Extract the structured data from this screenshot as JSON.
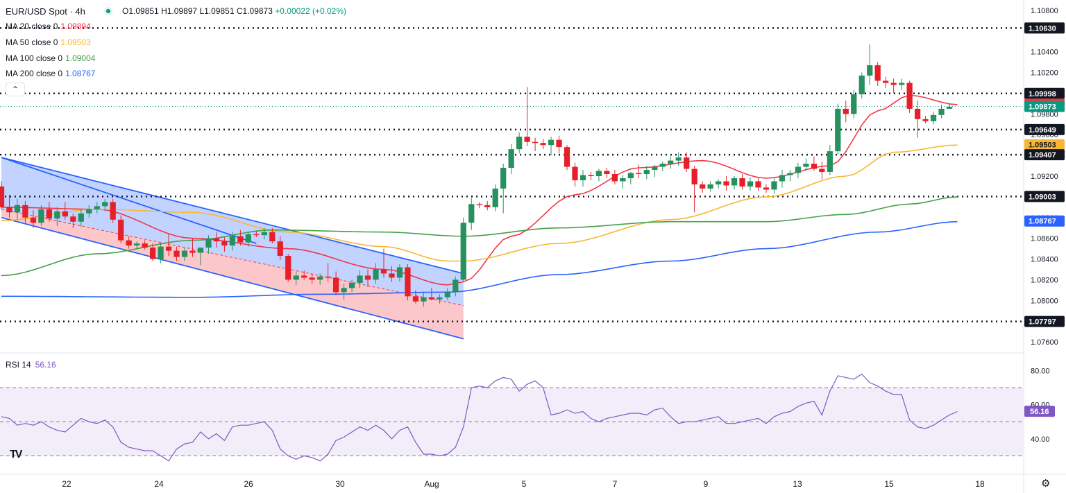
{
  "header": {
    "title": "EUR/USD Spot · 4h",
    "ohlc": {
      "open": "O1.09851",
      "high": "H1.09897",
      "low": "L1.09851",
      "close": "C1.09873",
      "change": "+0.00022 (+0.02%)"
    }
  },
  "indicators": {
    "ma": [
      {
        "label": "MA 20 close 0",
        "value": "1.09894",
        "color": "#f23645"
      },
      {
        "label": "MA 50 close 0",
        "value": "1.09503",
        "color": "#f7b733"
      },
      {
        "label": "MA 100 close 0",
        "value": "1.09004",
        "color": "#43a047"
      },
      {
        "label": "MA 200 close 0",
        "value": "1.08767",
        "color": "#2962ff"
      }
    ],
    "collapse_icon": "chevron-up-icon",
    "rsi": {
      "label": "RSI 14",
      "value": "56.16",
      "color": "#7e57c2"
    }
  },
  "chart_data": {
    "type": "candlestick",
    "symbol": "EUR/USD Spot",
    "timeframe": "4h",
    "price_axis": {
      "ylim": [
        1.075,
        1.109
      ],
      "ticks": [
        "1.07600",
        "1.07800",
        "1.08000",
        "1.08200",
        "1.08400",
        "1.08600",
        "1.08800",
        "1.09200",
        "1.09400",
        "1.09600",
        "1.09800",
        "1.10200",
        "1.10400",
        "1.10800"
      ]
    },
    "x_tick_labels": [
      "22",
      "24",
      "26",
      "30",
      "Aug",
      "5",
      "7",
      "9",
      "13",
      "15",
      "18"
    ],
    "horizontal_levels": [
      1.07797,
      1.09003,
      1.09407,
      1.09649,
      1.09998,
      1.1063
    ],
    "price_labels": [
      {
        "text": "1.10630",
        "value": 1.1063,
        "bg": "#131722",
        "fg": "#ffffff"
      },
      {
        "text": "1.09998",
        "value": 1.09998,
        "bg": "#131722",
        "fg": "#ffffff"
      },
      {
        "text": "1.09894",
        "value": 1.09894,
        "bg": "#f23645",
        "fg": "#ffffff"
      },
      {
        "text": "1.09873",
        "value": 1.09873,
        "bg": "#089981",
        "fg": "#ffffff"
      },
      {
        "text": "1.09649",
        "value": 1.09649,
        "bg": "#131722",
        "fg": "#ffffff"
      },
      {
        "text": "1.09503",
        "value": 1.09503,
        "bg": "#f7b733",
        "fg": "#131722"
      },
      {
        "text": "1.09407",
        "value": 1.09407,
        "bg": "#131722",
        "fg": "#ffffff"
      },
      {
        "text": "1.09004",
        "value": 1.09004,
        "bg": "#43a047",
        "fg": "#ffffff"
      },
      {
        "text": "1.09003",
        "value": 1.09003,
        "bg": "#131722",
        "fg": "#ffffff"
      },
      {
        "text": "1.08767",
        "value": 1.08767,
        "bg": "#2962ff",
        "fg": "#ffffff"
      },
      {
        "text": "1.07797",
        "value": 1.07797,
        "bg": "#131722",
        "fg": "#ffffff"
      }
    ],
    "current_price": 1.09873,
    "candles": [
      [
        1.091,
        1.0915,
        1.0888,
        1.089
      ],
      [
        1.089,
        1.0902,
        1.088,
        1.0885
      ],
      [
        1.0885,
        1.0898,
        1.0878,
        1.0892
      ],
      [
        1.0892,
        1.0896,
        1.0875,
        1.088
      ],
      [
        1.088,
        1.0887,
        1.087,
        1.0875
      ],
      [
        1.0875,
        1.0892,
        1.0872,
        1.0888
      ],
      [
        1.0888,
        1.0895,
        1.0876,
        1.0879
      ],
      [
        1.0879,
        1.089,
        1.0872,
        1.0886
      ],
      [
        1.0886,
        1.0895,
        1.0878,
        1.0881
      ],
      [
        1.0881,
        1.0884,
        1.087,
        1.0876
      ],
      [
        1.0876,
        1.0888,
        1.0871,
        1.0884
      ],
      [
        1.0884,
        1.0892,
        1.088,
        1.0888
      ],
      [
        1.0888,
        1.0895,
        1.0884,
        1.0891
      ],
      [
        1.0891,
        1.0898,
        1.0886,
        1.0895
      ],
      [
        1.0895,
        1.0898,
        1.0875,
        1.0878
      ],
      [
        1.0878,
        1.0882,
        1.0855,
        1.0858
      ],
      [
        1.0858,
        1.0862,
        1.085,
        1.0853
      ],
      [
        1.0853,
        1.0857,
        1.085,
        1.0855
      ],
      [
        1.0855,
        1.0858,
        1.0849,
        1.0851
      ],
      [
        1.0851,
        1.0855,
        1.0838,
        1.084
      ],
      [
        1.084,
        1.0856,
        1.0836,
        1.0852
      ],
      [
        1.0852,
        1.0865,
        1.0843,
        1.0848
      ],
      [
        1.0848,
        1.0852,
        1.0838,
        1.0842
      ],
      [
        1.0842,
        1.0851,
        1.0838,
        1.0848
      ],
      [
        1.0848,
        1.086,
        1.0842,
        1.0846
      ],
      [
        1.0846,
        1.085,
        1.0834,
        1.0851
      ],
      [
        1.0851,
        1.0863,
        1.0845,
        1.086
      ],
      [
        1.086,
        1.0866,
        1.0851,
        1.0857
      ],
      [
        1.0857,
        1.0861,
        1.0847,
        1.0853
      ],
      [
        1.0853,
        1.0866,
        1.0848,
        1.0862
      ],
      [
        1.0862,
        1.0868,
        1.0853,
        1.0856
      ],
      [
        1.0856,
        1.0866,
        1.0852,
        1.0864
      ],
      [
        1.0864,
        1.0867,
        1.0861,
        1.0863
      ],
      [
        1.0863,
        1.087,
        1.0859,
        1.0866
      ],
      [
        1.0866,
        1.087,
        1.0855,
        1.0857
      ],
      [
        1.0857,
        1.0862,
        1.0839,
        1.0843
      ],
      [
        1.0843,
        1.0845,
        1.0818,
        1.082
      ],
      [
        1.082,
        1.0828,
        1.0815,
        1.0824
      ],
      [
        1.0824,
        1.0829,
        1.082,
        1.0822
      ],
      [
        1.0822,
        1.0826,
        1.0816,
        1.082
      ],
      [
        1.082,
        1.0826,
        1.0815,
        1.0823
      ],
      [
        1.0823,
        1.0836,
        1.0818,
        1.0822
      ],
      [
        1.0822,
        1.0828,
        1.0805,
        1.0808
      ],
      [
        1.0808,
        1.0816,
        1.0801,
        1.0812
      ],
      [
        1.0812,
        1.082,
        1.0808,
        1.0817
      ],
      [
        1.0817,
        1.0829,
        1.0812,
        1.0824
      ],
      [
        1.0824,
        1.083,
        1.0813,
        1.082
      ],
      [
        1.082,
        1.0836,
        1.0816,
        1.083
      ],
      [
        1.083,
        1.085,
        1.0822,
        1.0826
      ],
      [
        1.0826,
        1.0833,
        1.0818,
        1.0822
      ],
      [
        1.0822,
        1.0835,
        1.0818,
        1.0832
      ],
      [
        1.0832,
        1.0835,
        1.08,
        1.0804
      ],
      [
        1.0804,
        1.081,
        1.0797,
        1.0799
      ],
      [
        1.0799,
        1.0808,
        1.0794,
        1.0803
      ],
      [
        1.0803,
        1.0812,
        1.08,
        1.0801
      ],
      [
        1.0801,
        1.0806,
        1.0797,
        1.0803
      ],
      [
        1.0803,
        1.0812,
        1.08,
        1.0808
      ],
      [
        1.0808,
        1.0823,
        1.0804,
        1.082
      ],
      [
        1.082,
        1.088,
        1.0818,
        1.0875
      ],
      [
        1.0875,
        1.0899,
        1.0868,
        1.0893
      ],
      [
        1.0893,
        1.0895,
        1.0889,
        1.0892
      ],
      [
        1.0892,
        1.0896,
        1.0887,
        1.089
      ],
      [
        1.089,
        1.0912,
        1.0886,
        1.0908
      ],
      [
        1.0908,
        1.0932,
        1.0884,
        1.0928
      ],
      [
        1.0928,
        1.0951,
        1.0922,
        1.0946
      ],
      [
        1.0946,
        1.0962,
        1.0942,
        1.0958
      ],
      [
        1.0958,
        1.1006,
        1.0949,
        1.0953
      ],
      [
        1.0953,
        1.0957,
        1.0944,
        1.0952
      ],
      [
        1.0952,
        1.0956,
        1.0946,
        1.095
      ],
      [
        1.095,
        1.0958,
        1.094,
        1.0955
      ],
      [
        1.0955,
        1.0959,
        1.0942,
        1.0948
      ],
      [
        1.0948,
        1.095,
        1.0926,
        1.0929
      ],
      [
        1.0929,
        1.0933,
        1.091,
        1.0916
      ],
      [
        1.0916,
        1.0926,
        1.091,
        1.0921
      ],
      [
        1.0921,
        1.0924,
        1.0916,
        1.092
      ],
      [
        1.092,
        1.0927,
        1.0915,
        1.0925
      ],
      [
        1.0925,
        1.0928,
        1.0918,
        1.0922
      ],
      [
        1.0922,
        1.0926,
        1.0912,
        1.0915
      ],
      [
        1.0915,
        1.0921,
        1.0908,
        1.0918
      ],
      [
        1.0918,
        1.0924,
        1.0912,
        1.0923
      ],
      [
        1.0923,
        1.0931,
        1.0918,
        1.0922
      ],
      [
        1.0922,
        1.093,
        1.0917,
        1.0926
      ],
      [
        1.0926,
        1.0931,
        1.0919,
        1.0929
      ],
      [
        1.0929,
        1.0934,
        1.0925,
        1.0932
      ],
      [
        1.0932,
        1.0939,
        1.0927,
        1.0935
      ],
      [
        1.0935,
        1.0943,
        1.093,
        1.0938
      ],
      [
        1.0938,
        1.0943,
        1.0924,
        1.0927
      ],
      [
        1.0927,
        1.093,
        1.0885,
        1.0912
      ],
      [
        1.0912,
        1.0915,
        1.0904,
        1.0908
      ],
      [
        1.0908,
        1.0915,
        1.0905,
        1.0912
      ],
      [
        1.0912,
        1.0917,
        1.0908,
        1.0915
      ],
      [
        1.0915,
        1.092,
        1.0906,
        1.0911
      ],
      [
        1.0911,
        1.092,
        1.0907,
        1.0918
      ],
      [
        1.0918,
        1.0922,
        1.0907,
        1.091
      ],
      [
        1.091,
        1.0919,
        1.0906,
        1.0915
      ],
      [
        1.0915,
        1.0918,
        1.0906,
        1.0909
      ],
      [
        1.0909,
        1.0912,
        1.0904,
        1.0907
      ],
      [
        1.0907,
        1.0919,
        1.0903,
        1.0915
      ],
      [
        1.0915,
        1.0926,
        1.0909,
        1.0921
      ],
      [
        1.0921,
        1.0926,
        1.0915,
        1.0923
      ],
      [
        1.0923,
        1.0933,
        1.0918,
        1.0929
      ],
      [
        1.0929,
        1.0937,
        1.0925,
        1.0932
      ],
      [
        1.0932,
        1.0939,
        1.0925,
        1.0927
      ],
      [
        1.0927,
        1.0934,
        1.0917,
        1.0924
      ],
      [
        1.0924,
        1.095,
        1.0921,
        1.0944
      ],
      [
        1.0944,
        1.099,
        1.0941,
        1.0985
      ],
      [
        1.0985,
        1.0993,
        1.0972,
        1.098
      ],
      [
        1.098,
        1.1003,
        1.0976,
        1.0999
      ],
      [
        1.0999,
        1.102,
        1.0995,
        1.1017
      ],
      [
        1.1017,
        1.1047,
        1.1008,
        1.1027
      ],
      [
        1.1027,
        1.103,
        1.1007,
        1.1012
      ],
      [
        1.1012,
        1.1016,
        1.1005,
        1.101
      ],
      [
        1.101,
        1.1014,
        1.1,
        1.1008
      ],
      [
        1.1008,
        1.1014,
        1.1003,
        1.101
      ],
      [
        1.101,
        1.1012,
        1.0981,
        1.0985
      ],
      [
        1.0985,
        1.0993,
        1.0957,
        1.0975
      ],
      [
        1.0975,
        1.0978,
        1.0971,
        1.0973
      ],
      [
        1.0973,
        1.0982,
        1.097,
        1.0979
      ],
      [
        1.0979,
        1.0989,
        1.0976,
        1.0985
      ],
      [
        1.0985,
        1.099,
        1.0985,
        1.0987
      ]
    ],
    "ma_series": [
      {
        "name": "MA 20",
        "color": "#f23645",
        "points": [
          [
            0,
            1.089
          ],
          [
            12,
            1.0888
          ],
          [
            24,
            1.086
          ],
          [
            36,
            1.085
          ],
          [
            48,
            1.083
          ],
          [
            56,
            1.0815
          ],
          [
            58,
            1.0818
          ],
          [
            64,
            1.0862
          ],
          [
            72,
            1.0902
          ],
          [
            80,
            1.0928
          ],
          [
            88,
            1.0935
          ],
          [
            96,
            1.0918
          ],
          [
            104,
            1.093
          ],
          [
            110,
            1.0983
          ],
          [
            114,
            1.0998
          ],
          [
            120,
            1.0989
          ]
        ]
      },
      {
        "name": "MA 50",
        "color": "#f7b733",
        "points": [
          [
            0,
            1.0877
          ],
          [
            12,
            1.0888
          ],
          [
            24,
            1.0885
          ],
          [
            36,
            1.0866
          ],
          [
            48,
            1.0852
          ],
          [
            56,
            1.0838
          ],
          [
            58,
            1.0838
          ],
          [
            70,
            1.0855
          ],
          [
            84,
            1.0878
          ],
          [
            96,
            1.09
          ],
          [
            106,
            1.092
          ],
          [
            112,
            1.0943
          ],
          [
            120,
            1.095
          ]
        ]
      },
      {
        "name": "MA 100",
        "color": "#43a047",
        "points": [
          [
            0,
            1.0824
          ],
          [
            12,
            1.0845
          ],
          [
            24,
            1.0858
          ],
          [
            34,
            1.0868
          ],
          [
            48,
            1.0866
          ],
          [
            58,
            1.0862
          ],
          [
            70,
            1.087
          ],
          [
            84,
            1.0876
          ],
          [
            96,
            1.0876
          ],
          [
            106,
            1.0883
          ],
          [
            114,
            1.0893
          ],
          [
            120,
            1.09
          ]
        ]
      },
      {
        "name": "MA 200",
        "color": "#2962ff",
        "points": [
          [
            0,
            1.0804
          ],
          [
            24,
            1.0803
          ],
          [
            40,
            1.0806
          ],
          [
            56,
            1.0808
          ],
          [
            70,
            1.0825
          ],
          [
            84,
            1.0838
          ],
          [
            96,
            1.085
          ],
          [
            110,
            1.0866
          ],
          [
            120,
            1.0876
          ]
        ]
      }
    ],
    "channel": {
      "upper": [
        [
          0,
          1.0938
        ],
        [
          58,
          1.0826
        ]
      ],
      "middle": [
        [
          0,
          1.0888
        ],
        [
          58,
          1.0795
        ]
      ],
      "lower": [
        [
          0,
          1.088
        ],
        [
          58,
          1.0763
        ]
      ],
      "upper_inner": [
        [
          0,
          1.0938
        ],
        [
          32,
          1.0855
        ]
      ]
    },
    "rsi": {
      "ylim": [
        20,
        90
      ],
      "ticks": [
        "40.00",
        "60.00",
        "80.00"
      ],
      "bands": [
        30,
        50,
        70
      ],
      "last": 56.16,
      "values": [
        53,
        52,
        48,
        49,
        48,
        50,
        47,
        45,
        44,
        48,
        52,
        50,
        49,
        51,
        47,
        38,
        35,
        34,
        33,
        33,
        30,
        27,
        34,
        37,
        38,
        44,
        40,
        43,
        39,
        47,
        48,
        48,
        49,
        50,
        45,
        34,
        30,
        28,
        30,
        29,
        27,
        31,
        39,
        41,
        44,
        47,
        45,
        48,
        45,
        40,
        45,
        47,
        38,
        31,
        31,
        30,
        31,
        35,
        47,
        70,
        71,
        70,
        74,
        76,
        75,
        68,
        72,
        74,
        70,
        54,
        55,
        57,
        55,
        56,
        52,
        50,
        52,
        53,
        54,
        55,
        55,
        54,
        57,
        58,
        53,
        49,
        50,
        50,
        51,
        52,
        53,
        49,
        49,
        50,
        51,
        52,
        49,
        53,
        55,
        56,
        59,
        61,
        62,
        54,
        68,
        77,
        76,
        75,
        78,
        73,
        71,
        68,
        66,
        66,
        51,
        47,
        46,
        48,
        51,
        54,
        56
      ]
    }
  }
}
